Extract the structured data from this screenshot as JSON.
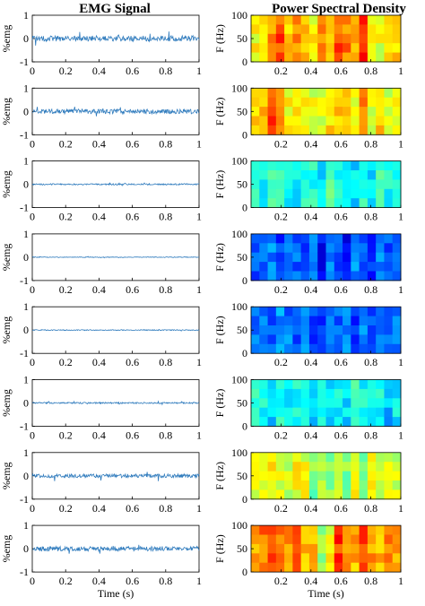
{
  "figure": {
    "left_title": "EMG Signal",
    "right_title": "Power Spectral Density"
  },
  "chart_data": [
    {
      "type": "line",
      "title": "EMG Signal",
      "xlabel": "Time (s)",
      "ylabel": "%emg",
      "xlim": [
        0,
        1
      ],
      "ylim": [
        -1,
        1
      ],
      "xticks": [
        "0",
        "0.2",
        "0.4",
        "0.6",
        "0.8",
        "1"
      ],
      "yticks": [
        "-1",
        "0",
        "1"
      ],
      "panels": [
        {
          "row": 1,
          "noise_amplitude": 0.12,
          "max_spike": 0.35,
          "line_color": "#2f7bbd"
        },
        {
          "row": 2,
          "noise_amplitude": 0.1,
          "max_spike": 0.25,
          "line_color": "#2f7bbd"
        },
        {
          "row": 3,
          "noise_amplitude": 0.03,
          "max_spike": 0.06,
          "line_color": "#2f7bbd"
        },
        {
          "row": 4,
          "noise_amplitude": 0.015,
          "max_spike": 0.03,
          "line_color": "#2f7bbd"
        },
        {
          "row": 5,
          "noise_amplitude": 0.02,
          "max_spike": 0.04,
          "line_color": "#2f7bbd"
        },
        {
          "row": 6,
          "noise_amplitude": 0.03,
          "max_spike": 0.08,
          "line_color": "#2f7bbd"
        },
        {
          "row": 7,
          "noise_amplitude": 0.08,
          "max_spike": 0.25,
          "line_color": "#2f7bbd"
        },
        {
          "row": 8,
          "noise_amplitude": 0.1,
          "max_spike": 0.3,
          "line_color": "#2f7bbd"
        }
      ]
    },
    {
      "type": "heatmap",
      "title": "Power Spectral Density",
      "xlabel": "Time (s)",
      "ylabel": "F (Hz)",
      "xlim": [
        0,
        1
      ],
      "ylim": [
        0,
        100
      ],
      "xticks": [
        "0.2",
        "0.4",
        "0.6",
        "0.8",
        "1"
      ],
      "yticks": [
        "0",
        "50",
        "100"
      ],
      "colormap": "jet",
      "columns": 18,
      "rows_per_panel": 5,
      "panels": [
        {
          "row": 1,
          "column_intensity": [
            0.62,
            0.66,
            0.74,
            0.8,
            0.68,
            0.72,
            0.7,
            0.62,
            0.74,
            0.7,
            0.8,
            0.75,
            0.7,
            0.84,
            0.66,
            0.6,
            0.64,
            0.66
          ]
        },
        {
          "row": 2,
          "column_intensity": [
            0.65,
            0.7,
            0.8,
            0.7,
            0.62,
            0.66,
            0.62,
            0.6,
            0.58,
            0.65,
            0.66,
            0.7,
            0.6,
            0.74,
            0.6,
            0.66,
            0.58,
            0.6
          ]
        },
        {
          "row": 3,
          "column_intensity": [
            0.4,
            0.36,
            0.45,
            0.42,
            0.38,
            0.36,
            0.42,
            0.4,
            0.36,
            0.45,
            0.4,
            0.38,
            0.35,
            0.4,
            0.36,
            0.42,
            0.38,
            0.4
          ]
        },
        {
          "row": 4,
          "column_intensity": [
            0.2,
            0.22,
            0.25,
            0.18,
            0.26,
            0.22,
            0.18,
            0.24,
            0.12,
            0.26,
            0.2,
            0.14,
            0.25,
            0.2,
            0.16,
            0.24,
            0.2,
            0.22
          ]
        },
        {
          "row": 5,
          "column_intensity": [
            0.24,
            0.26,
            0.2,
            0.28,
            0.24,
            0.22,
            0.25,
            0.2,
            0.16,
            0.26,
            0.2,
            0.25,
            0.18,
            0.26,
            0.22,
            0.24,
            0.22,
            0.24
          ]
        },
        {
          "row": 6,
          "column_intensity": [
            0.4,
            0.38,
            0.34,
            0.42,
            0.36,
            0.38,
            0.36,
            0.32,
            0.4,
            0.36,
            0.38,
            0.34,
            0.42,
            0.38,
            0.36,
            0.38,
            0.3,
            0.36
          ]
        },
        {
          "row": 7,
          "column_intensity": [
            0.6,
            0.62,
            0.64,
            0.6,
            0.58,
            0.62,
            0.6,
            0.5,
            0.55,
            0.52,
            0.58,
            0.5,
            0.62,
            0.52,
            0.64,
            0.55,
            0.6,
            0.58
          ]
        },
        {
          "row": 8,
          "column_intensity": [
            0.72,
            0.76,
            0.82,
            0.74,
            0.72,
            0.78,
            0.7,
            0.68,
            0.52,
            0.62,
            0.82,
            0.76,
            0.7,
            0.8,
            0.72,
            0.68,
            0.74,
            0.7
          ]
        }
      ]
    }
  ],
  "colors": {
    "line": "#2f7bbd",
    "axes": "#000000"
  }
}
